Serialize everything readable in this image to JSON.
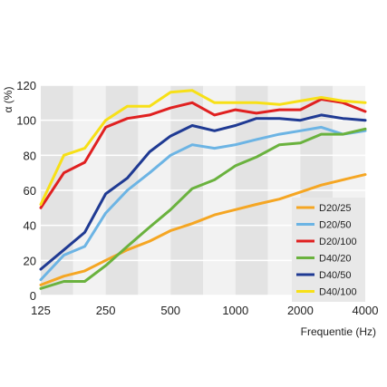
{
  "chart_data": {
    "type": "line",
    "x_scale": "log",
    "x_tick_labels": [
      "125",
      "250",
      "500",
      "1000",
      "2000",
      "4000"
    ],
    "x_tick_values": [
      125,
      250,
      500,
      1000,
      2000,
      4000
    ],
    "xlim": [
      125,
      4000
    ],
    "ylim": [
      0,
      120
    ],
    "y_ticks": [
      0,
      20,
      40,
      60,
      80,
      100,
      120
    ],
    "xlabel": "Frequentie (Hz)",
    "ylabel": "α (%)",
    "grid": "vertical alternating bands",
    "legend_position": "bottom-right",
    "x": [
      125,
      160,
      200,
      250,
      315,
      400,
      500,
      630,
      800,
      1000,
      1250,
      1600,
      2000,
      2500,
      3150,
      4000
    ],
    "series": [
      {
        "name": "D20/25",
        "color": "#f5a623",
        "values": [
          6,
          11,
          14,
          20,
          26,
          31,
          37,
          41,
          46,
          49,
          52,
          55,
          59,
          63,
          66,
          69
        ]
      },
      {
        "name": "D20/50",
        "color": "#6cb4e4",
        "values": [
          9,
          23,
          28,
          47,
          60,
          70,
          80,
          86,
          84,
          86,
          89,
          92,
          94,
          96,
          92,
          94
        ]
      },
      {
        "name": "D20/100",
        "color": "#e02020",
        "values": [
          50,
          70,
          76,
          96,
          101,
          103,
          107,
          110,
          103,
          106,
          104,
          106,
          106,
          112,
          110,
          105
        ]
      },
      {
        "name": "D40/20",
        "color": "#6ab23e",
        "values": [
          4,
          8,
          8,
          17,
          28,
          39,
          49,
          61,
          66,
          74,
          79,
          86,
          87,
          92,
          92,
          95
        ]
      },
      {
        "name": "D40/50",
        "color": "#1f3a93",
        "values": [
          15,
          26,
          36,
          58,
          67,
          82,
          91,
          97,
          94,
          97,
          101,
          101,
          100,
          103,
          101,
          100
        ]
      },
      {
        "name": "D40/100",
        "color": "#f7e017",
        "values": [
          52,
          80,
          84,
          100,
          108,
          108,
          116,
          117,
          110,
          110,
          110,
          109,
          111,
          113,
          111,
          110
        ]
      }
    ]
  }
}
